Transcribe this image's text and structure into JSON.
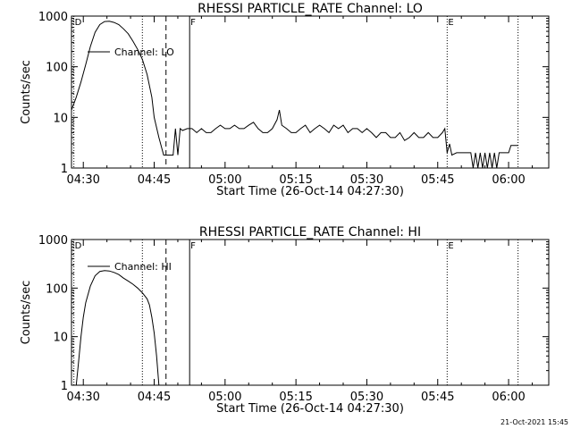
{
  "footer_timestamp": "21-Oct-2021 15:45",
  "chart_data": [
    {
      "type": "line",
      "title": "RHESSI PARTICLE_RATE Channel: LO",
      "xlabel": "Start Time (26-Oct-14 04:27:30)",
      "ylabel": "Counts/sec",
      "y_scale": "log",
      "ylim": [
        1,
        1000
      ],
      "xlim": [
        "04:27:30",
        "06:08:30"
      ],
      "y_ticks": [
        "1",
        "10",
        "100",
        "1000"
      ],
      "x_ticks": [
        "04:30",
        "04:45",
        "05:00",
        "05:15",
        "05:30",
        "05:45",
        "06:00"
      ],
      "legend": {
        "label": "Channel: LO",
        "placement": "top-left"
      },
      "markers": [
        {
          "label": "D",
          "time": "04:28:00",
          "style": "dotted"
        },
        {
          "label": "",
          "time": "04:42:30",
          "style": "dotted"
        },
        {
          "label": "",
          "time": "04:47:30",
          "style": "dashed"
        },
        {
          "label": "F",
          "time": "04:52:30",
          "style": "solid"
        },
        {
          "label": "E",
          "time": "05:47:00",
          "style": "dotted"
        },
        {
          "label": "",
          "time": "06:02:00",
          "style": "dotted"
        }
      ],
      "series": [
        {
          "name": "Channel: LO",
          "points": [
            [
              "04:27:30",
              14
            ],
            [
              "04:28:30",
              25
            ],
            [
              "04:29:30",
              50
            ],
            [
              "04:30:30",
              110
            ],
            [
              "04:31:30",
              250
            ],
            [
              "04:32:30",
              480
            ],
            [
              "04:33:30",
              680
            ],
            [
              "04:34:30",
              780
            ],
            [
              "04:35:30",
              790
            ],
            [
              "04:36:30",
              750
            ],
            [
              "04:37:30",
              680
            ],
            [
              "04:38:30",
              560
            ],
            [
              "04:39:30",
              450
            ],
            [
              "04:40:30",
              320
            ],
            [
              "04:41:30",
              220
            ],
            [
              "04:42:30",
              140
            ],
            [
              "04:43:30",
              70
            ],
            [
              "04:44:30",
              25
            ],
            [
              "04:45:00",
              10
            ],
            [
              "04:46:00",
              4
            ],
            [
              "04:47:00",
              1.8
            ],
            [
              "04:47:30",
              1.8
            ],
            [
              "04:49:00",
              1.8
            ],
            [
              "04:49:30",
              6
            ],
            [
              "04:50:00",
              1.8
            ],
            [
              "04:50:30",
              6
            ],
            [
              "04:51:00",
              5.5
            ],
            [
              "04:52:00",
              6
            ],
            [
              "04:53:00",
              6
            ],
            [
              "04:54:00",
              5
            ],
            [
              "04:55:00",
              6
            ],
            [
              "04:56:00",
              5
            ],
            [
              "04:57:00",
              5
            ],
            [
              "04:58:00",
              6
            ],
            [
              "04:59:00",
              7
            ],
            [
              "05:00:00",
              6
            ],
            [
              "05:01:00",
              6
            ],
            [
              "05:02:00",
              7
            ],
            [
              "05:03:00",
              6
            ],
            [
              "05:04:00",
              6
            ],
            [
              "05:05:00",
              7
            ],
            [
              "05:06:00",
              8
            ],
            [
              "05:07:00",
              6
            ],
            [
              "05:08:00",
              5
            ],
            [
              "05:09:00",
              5
            ],
            [
              "05:10:00",
              6
            ],
            [
              "05:11:00",
              9
            ],
            [
              "05:11:30",
              14
            ],
            [
              "05:12:00",
              7
            ],
            [
              "05:13:00",
              6
            ],
            [
              "05:14:00",
              5
            ],
            [
              "05:15:00",
              5
            ],
            [
              "05:16:00",
              6
            ],
            [
              "05:17:00",
              7
            ],
            [
              "05:18:00",
              5
            ],
            [
              "05:19:00",
              6
            ],
            [
              "05:20:00",
              7
            ],
            [
              "05:21:00",
              6
            ],
            [
              "05:22:00",
              5
            ],
            [
              "05:23:00",
              7
            ],
            [
              "05:24:00",
              6
            ],
            [
              "05:25:00",
              7
            ],
            [
              "05:26:00",
              5
            ],
            [
              "05:27:00",
              6
            ],
            [
              "05:28:00",
              6
            ],
            [
              "05:29:00",
              5
            ],
            [
              "05:30:00",
              6
            ],
            [
              "05:31:00",
              5
            ],
            [
              "05:32:00",
              4
            ],
            [
              "05:33:00",
              5
            ],
            [
              "05:34:00",
              5
            ],
            [
              "05:35:00",
              4
            ],
            [
              "05:36:00",
              4
            ],
            [
              "05:37:00",
              5
            ],
            [
              "05:38:00",
              3.5
            ],
            [
              "05:39:00",
              4
            ],
            [
              "05:40:00",
              5
            ],
            [
              "05:41:00",
              4
            ],
            [
              "05:42:00",
              4
            ],
            [
              "05:43:00",
              5
            ],
            [
              "05:44:00",
              4
            ],
            [
              "05:45:00",
              4
            ],
            [
              "05:46:00",
              5
            ],
            [
              "05:46:30",
              6
            ],
            [
              "05:47:00",
              2
            ],
            [
              "05:47:30",
              3
            ],
            [
              "05:48:00",
              1.8
            ],
            [
              "05:49:00",
              2
            ],
            [
              "05:50:00",
              2
            ],
            [
              "05:51:00",
              2
            ],
            [
              "05:52:00",
              2
            ],
            [
              "05:52:30",
              1
            ],
            [
              "05:53:00",
              2
            ],
            [
              "05:53:30",
              1
            ],
            [
              "05:54:00",
              2
            ],
            [
              "05:54:30",
              1
            ],
            [
              "05:55:00",
              2
            ],
            [
              "05:55:30",
              1
            ],
            [
              "05:56:00",
              2
            ],
            [
              "05:56:30",
              1
            ],
            [
              "05:57:00",
              2
            ],
            [
              "05:57:30",
              1
            ],
            [
              "05:58:00",
              2
            ],
            [
              "05:59:00",
              2
            ],
            [
              "06:00:00",
              2
            ],
            [
              "06:00:30",
              2.8
            ],
            [
              "06:02:00",
              2.8
            ]
          ]
        }
      ]
    },
    {
      "type": "line",
      "title": "RHESSI PARTICLE_RATE Channel: HI",
      "xlabel": "Start Time (26-Oct-14 04:27:30)",
      "ylabel": "Counts/sec",
      "y_scale": "log",
      "ylim": [
        1,
        1000
      ],
      "xlim": [
        "04:27:30",
        "06:08:30"
      ],
      "y_ticks": [
        "1",
        "10",
        "100",
        "1000"
      ],
      "x_ticks": [
        "04:30",
        "04:45",
        "05:00",
        "05:15",
        "05:30",
        "05:45",
        "06:00"
      ],
      "legend": {
        "label": "Channel: HI",
        "placement": "top-left"
      },
      "markers": [
        {
          "label": "D",
          "time": "04:28:00",
          "style": "dotted"
        },
        {
          "label": "",
          "time": "04:42:30",
          "style": "dotted"
        },
        {
          "label": "",
          "time": "04:47:30",
          "style": "dashed"
        },
        {
          "label": "F",
          "time": "04:52:30",
          "style": "solid"
        },
        {
          "label": "E",
          "time": "05:47:00",
          "style": "dotted"
        },
        {
          "label": "",
          "time": "06:02:00",
          "style": "dotted"
        }
      ],
      "series": [
        {
          "name": "Channel: HI",
          "points": [
            [
              "04:28:30",
              1
            ],
            [
              "04:29:00",
              3
            ],
            [
              "04:29:30",
              10
            ],
            [
              "04:30:00",
              25
            ],
            [
              "04:30:30",
              50
            ],
            [
              "04:31:30",
              110
            ],
            [
              "04:32:30",
              180
            ],
            [
              "04:33:30",
              220
            ],
            [
              "04:34:30",
              230
            ],
            [
              "04:35:30",
              225
            ],
            [
              "04:36:30",
              210
            ],
            [
              "04:37:30",
              190
            ],
            [
              "04:38:30",
              160
            ],
            [
              "04:39:30",
              140
            ],
            [
              "04:40:30",
              120
            ],
            [
              "04:41:30",
              100
            ],
            [
              "04:42:30",
              80
            ],
            [
              "04:43:30",
              60
            ],
            [
              "04:44:00",
              45
            ],
            [
              "04:44:30",
              25
            ],
            [
              "04:45:00",
              12
            ],
            [
              "04:45:30",
              4
            ],
            [
              "04:46:00",
              1
            ]
          ]
        }
      ]
    }
  ]
}
